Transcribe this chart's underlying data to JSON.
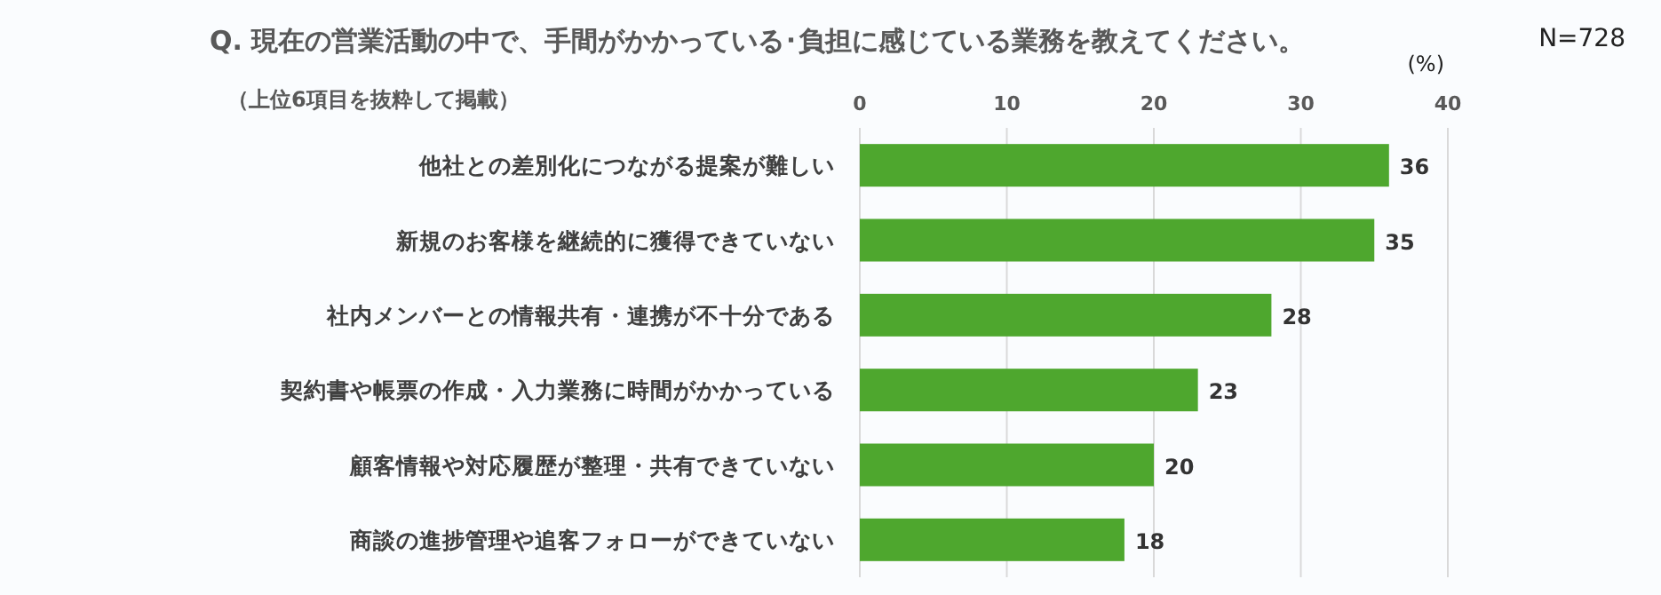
{
  "chart_data": {
    "type": "bar",
    "orientation": "horizontal",
    "title": "Q. 現在の営業活動の中で、手間がかかっている･負担に感じている業務を教えてください。",
    "subtitle": "（上位6項目を抜粋して掲載）",
    "xlabel": "(%)",
    "annotations": [
      "N=728"
    ],
    "categories": [
      "他社との差別化につながる提案が難しい",
      "新規のお客様を継続的に獲得できていない",
      "社内メンバーとの情報共有・連携が不十分である",
      "契約書や帳票の作成・入力業務に時間がかかっている",
      "顧客情報や対応履歴が整理・共有できていない",
      "商談の進捗管理や追客フォローができていない"
    ],
    "values": [
      36,
      35,
      28,
      23,
      20,
      18
    ],
    "color": "#4ea72e",
    "xlim": [
      0,
      40
    ],
    "xticks": [
      0,
      10,
      20,
      30,
      40
    ],
    "grid": "x",
    "data_labels": true
  }
}
